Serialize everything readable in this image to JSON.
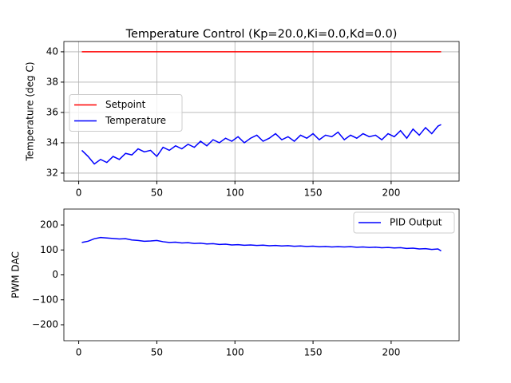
{
  "chart_data": [
    {
      "type": "line",
      "title": "Temperature Control (Kp=20.0,Ki=0.0,Kd=0.0)",
      "y_label": "Temperature (deg C)",
      "x": [
        2,
        6,
        10,
        14,
        18,
        22,
        26,
        30,
        34,
        38,
        42,
        46,
        50,
        54,
        58,
        62,
        66,
        70,
        74,
        78,
        82,
        86,
        90,
        94,
        98,
        102,
        106,
        110,
        114,
        118,
        122,
        126,
        130,
        134,
        138,
        142,
        146,
        150,
        154,
        158,
        162,
        166,
        170,
        174,
        178,
        182,
        186,
        190,
        194,
        198,
        202,
        206,
        210,
        214,
        218,
        222,
        226,
        230,
        232
      ],
      "series": [
        {
          "name": "Setpoint",
          "color": "#ff0000",
          "values": [
            40,
            40,
            40,
            40,
            40,
            40,
            40,
            40,
            40,
            40,
            40,
            40,
            40,
            40,
            40,
            40,
            40,
            40,
            40,
            40,
            40,
            40,
            40,
            40,
            40,
            40,
            40,
            40,
            40,
            40,
            40,
            40,
            40,
            40,
            40,
            40,
            40,
            40,
            40,
            40,
            40,
            40,
            40,
            40,
            40,
            40,
            40,
            40,
            40,
            40,
            40,
            40,
            40,
            40,
            40,
            40,
            40,
            40,
            40
          ]
        },
        {
          "name": "Temperature",
          "color": "#0000ff",
          "values": [
            33.5,
            33.1,
            32.6,
            32.9,
            32.7,
            33.1,
            32.9,
            33.3,
            33.2,
            33.6,
            33.4,
            33.5,
            33.1,
            33.7,
            33.5,
            33.8,
            33.6,
            33.9,
            33.7,
            34.1,
            33.8,
            34.2,
            34.0,
            34.3,
            34.1,
            34.4,
            34.0,
            34.3,
            34.5,
            34.1,
            34.3,
            34.6,
            34.2,
            34.4,
            34.1,
            34.5,
            34.3,
            34.6,
            34.2,
            34.5,
            34.4,
            34.7,
            34.2,
            34.5,
            34.3,
            34.6,
            34.4,
            34.5,
            34.2,
            34.6,
            34.4,
            34.8,
            34.3,
            34.9,
            34.5,
            35.0,
            34.6,
            35.1,
            35.2
          ]
        }
      ],
      "xlim": [
        -9.5,
        243.5
      ],
      "xticks": [
        0,
        50,
        100,
        150,
        200
      ],
      "ylim": [
        31.47,
        40.68
      ],
      "yticks": [
        32,
        34,
        36,
        38,
        40
      ],
      "grid": true,
      "legend": "center left"
    },
    {
      "type": "line",
      "y_label": "PWM DAC",
      "x": [
        2,
        6,
        10,
        14,
        18,
        22,
        26,
        30,
        34,
        38,
        42,
        46,
        50,
        54,
        58,
        62,
        66,
        70,
        74,
        78,
        82,
        86,
        90,
        94,
        98,
        102,
        106,
        110,
        114,
        118,
        122,
        126,
        130,
        134,
        138,
        142,
        146,
        150,
        154,
        158,
        162,
        166,
        170,
        174,
        178,
        182,
        186,
        190,
        194,
        198,
        202,
        206,
        210,
        214,
        218,
        222,
        226,
        230,
        232
      ],
      "series": [
        {
          "name": "PID Output",
          "color": "#0000ff",
          "values": [
            130,
            135,
            145,
            150,
            148,
            146,
            144,
            145,
            140,
            138,
            135,
            136,
            138,
            133,
            130,
            131,
            128,
            129,
            126,
            127,
            124,
            125,
            122,
            123,
            120,
            121,
            119,
            120,
            118,
            119,
            117,
            118,
            116,
            117,
            115,
            116,
            114,
            115,
            113,
            114,
            112,
            113,
            112,
            113,
            111,
            112,
            110,
            111,
            109,
            110,
            108,
            109,
            106,
            107,
            104,
            105,
            102,
            104,
            96
          ]
        }
      ],
      "xlim": [
        -9.5,
        243.5
      ],
      "xticks": [
        0,
        50,
        100,
        150,
        200
      ],
      "ylim": [
        -264,
        264
      ],
      "yticks": [
        {
          "value": -200,
          "label": "−200"
        },
        {
          "value": -100,
          "label": "−100"
        },
        0,
        100,
        200
      ],
      "grid": false,
      "legend": "upper right"
    }
  ]
}
